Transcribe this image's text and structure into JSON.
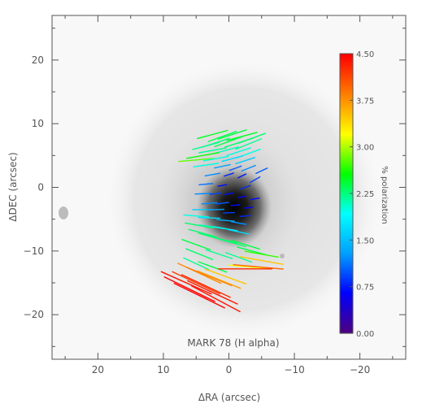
{
  "chart_data": {
    "type": "scatter",
    "title": "",
    "xlabel": "ΔRA (arcsec)",
    "ylabel": "ΔDEC (arcsec)",
    "xlim": [
      27,
      -27
    ],
    "ylim": [
      -27,
      27
    ],
    "x_ticks": [
      20,
      10,
      0,
      -10,
      -20
    ],
    "y_ticks": [
      20,
      10,
      0,
      -10,
      -20
    ],
    "x_tick_labels": [
      "20",
      "10",
      "0",
      "−10",
      "−20"
    ],
    "y_tick_labels": [
      "20",
      "10",
      "0",
      "−10",
      "−20"
    ],
    "annotation": "MARK 78 (H alpha)",
    "grid": false,
    "background": "greyscale H-alpha image of MARK 78, dark nucleus near (0, -2) arcsec",
    "colorbar": {
      "label": "% polarization",
      "min": 0.0,
      "max": 4.5,
      "tick_values": [
        0.0,
        0.75,
        1.5,
        2.25,
        3.0,
        3.75,
        4.5
      ],
      "tick_labels": [
        "0.00",
        "0.75",
        "1.50",
        "2.25",
        "3.00",
        "3.75",
        "4.50"
      ],
      "colors": [
        "#4b0082",
        "#0000ff",
        "#00a0ff",
        "#00ffff",
        "#00ff00",
        "#ffff00",
        "#ff8000",
        "#ff0000"
      ]
    },
    "vector_length_unit_arcsec_per_percent": 1.9,
    "series": [
      {
        "fields": [
          "ra",
          "dec",
          "position_angle_deg",
          "polarization_percent"
        ],
        "vectors": [
          [
            1.0,
            8.0,
            110,
            2.4
          ],
          [
            2.5,
            8.3,
            105,
            2.5
          ],
          [
            -0.5,
            8.3,
            108,
            2.4
          ],
          [
            -2.0,
            8.0,
            105,
            2.5
          ],
          [
            -3.5,
            7.7,
            110,
            2.3
          ],
          [
            2.0,
            7.0,
            108,
            2.3
          ],
          [
            0.0,
            7.2,
            110,
            2.4
          ],
          [
            -1.5,
            7.0,
            108,
            2.3
          ],
          [
            -3.0,
            6.8,
            112,
            2.2
          ],
          [
            3.5,
            6.5,
            105,
            2.2
          ],
          [
            2.5,
            5.8,
            100,
            2.2
          ],
          [
            0.5,
            5.8,
            105,
            2.1
          ],
          [
            -1.5,
            5.6,
            108,
            2.0
          ],
          [
            -3.0,
            5.3,
            110,
            2.0
          ],
          [
            4.0,
            5.0,
            100,
            2.6
          ],
          [
            5.0,
            4.3,
            95,
            2.8
          ],
          [
            2.0,
            4.5,
            100,
            2.0
          ],
          [
            -0.5,
            4.5,
            105,
            1.7
          ],
          [
            -2.5,
            4.2,
            108,
            1.6
          ],
          [
            3.5,
            3.5,
            98,
            2.0
          ],
          [
            1.0,
            3.3,
            102,
            1.3
          ],
          [
            -1.0,
            3.0,
            110,
            1.0
          ],
          [
            -3.0,
            3.0,
            112,
            1.2
          ],
          [
            -5.0,
            2.6,
            115,
            1.0
          ],
          [
            2.5,
            2.0,
            100,
            1.2
          ],
          [
            0.0,
            2.0,
            108,
            0.8
          ],
          [
            -2.0,
            1.8,
            115,
            0.7
          ],
          [
            -4.0,
            1.2,
            120,
            0.9
          ],
          [
            3.5,
            0.5,
            95,
            1.1
          ],
          [
            1.0,
            0.3,
            100,
            0.7
          ],
          [
            -2.5,
            0.0,
            110,
            0.8
          ],
          [
            4.0,
            -1.0,
            92,
            1.2
          ],
          [
            2.0,
            -1.0,
            95,
            0.9
          ],
          [
            0.0,
            -1.0,
            100,
            0.7
          ],
          [
            -2.0,
            -1.5,
            100,
            0.6
          ],
          [
            -4.0,
            -1.8,
            100,
            0.7
          ],
          [
            3.0,
            -2.5,
            95,
            1.2
          ],
          [
            1.0,
            -2.5,
            98,
            1.0
          ],
          [
            -1.0,
            -2.8,
            95,
            0.7
          ],
          [
            -3.0,
            -3.2,
            95,
            0.6
          ],
          [
            4.0,
            -3.5,
            90,
            1.6
          ],
          [
            2.0,
            -3.5,
            92,
            1.3
          ],
          [
            0.0,
            -4.0,
            92,
            0.9
          ],
          [
            -2.5,
            -4.5,
            95,
            0.8
          ],
          [
            5.0,
            -4.5,
            85,
            2.0
          ],
          [
            3.0,
            -4.8,
            88,
            1.7
          ],
          [
            0.5,
            -5.2,
            85,
            1.4
          ],
          [
            -1.5,
            -5.6,
            80,
            1.2
          ],
          [
            4.5,
            -6.0,
            80,
            2.3
          ],
          [
            2.5,
            -6.2,
            82,
            2.1
          ],
          [
            0.5,
            -6.5,
            80,
            1.9
          ],
          [
            -1.5,
            -7.0,
            78,
            1.7
          ],
          [
            4.0,
            -7.2,
            75,
            2.3
          ],
          [
            2.5,
            -7.8,
            75,
            2.3
          ],
          [
            1.0,
            -8.2,
            76,
            2.3
          ],
          [
            -0.5,
            -8.7,
            74,
            2.3
          ],
          [
            -2.5,
            -9.0,
            73,
            2.4
          ],
          [
            5.0,
            -9.0,
            70,
            2.4
          ],
          [
            -3.5,
            -10.0,
            75,
            2.4
          ],
          [
            -5.0,
            -10.5,
            80,
            2.7
          ],
          [
            4.5,
            -10.5,
            68,
            2.3
          ],
          [
            1.5,
            -10.5,
            72,
            2.2
          ],
          [
            -1.5,
            -11.0,
            70,
            2.2
          ],
          [
            5.0,
            -12.0,
            65,
            2.2
          ],
          [
            2.5,
            -12.5,
            70,
            2.4
          ],
          [
            -3.0,
            -12.5,
            85,
            3.2
          ],
          [
            -5.0,
            -11.5,
            80,
            3.5
          ],
          [
            -4.5,
            -12.5,
            85,
            4.0
          ],
          [
            -2.5,
            -12.8,
            90,
            4.3
          ],
          [
            4.5,
            -13.5,
            65,
            3.8
          ],
          [
            3.0,
            -14.0,
            68,
            3.9
          ],
          [
            1.5,
            -14.5,
            68,
            3.7
          ],
          [
            5.0,
            -15.0,
            65,
            4.2
          ],
          [
            3.5,
            -15.5,
            65,
            4.3
          ],
          [
            6.0,
            -16.0,
            64,
            4.5
          ],
          [
            2.5,
            -16.5,
            65,
            4.4
          ],
          [
            4.5,
            -17.0,
            64,
            4.5
          ],
          [
            2.0,
            -17.5,
            62,
            4.4
          ],
          [
            6.5,
            -15.0,
            66,
            4.4
          ],
          [
            0.5,
            -14.0,
            70,
            3.5
          ]
        ]
      }
    ]
  }
}
